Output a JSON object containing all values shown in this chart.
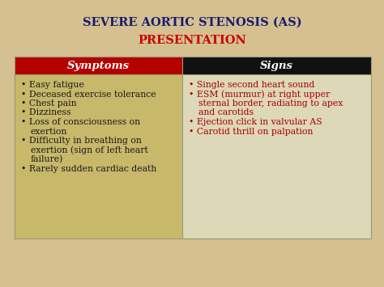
{
  "title_line1": "SEVERE AORTIC STENOSIS (AS)",
  "title_line2": "PRESENTATION",
  "title_color1": "#1a1a6e",
  "title_color2": "#cc0000",
  "bg_color": "#d4c090",
  "header_left_bg": "#b50000",
  "header_right_bg": "#111111",
  "header_text_color": "#ffffff",
  "header_left": "Symptoms",
  "header_right": "Signs",
  "cell_left_bg": "#c8b86a",
  "cell_right_bg": "#ddd8b8",
  "symptoms_color": "#1a1a1a",
  "signs_color": "#aa0000",
  "bullet": "•",
  "symptoms": [
    "Easy fatigue",
    "Deceased exercise tolerance",
    "Chest pain",
    "Dizziness",
    "Loss of consciousness on\nexertion",
    "Difficulty in breathing on\nexertion (sign of left heart\nfailure)",
    "Rarely sudden cardiac death"
  ],
  "signs": [
    "Single second heart sound",
    "ESM (murmur) at right upper\nsternal border, radiating to apex\nand carotids",
    "Ejection click in valvular AS",
    "Carotid thrill on palpation"
  ]
}
